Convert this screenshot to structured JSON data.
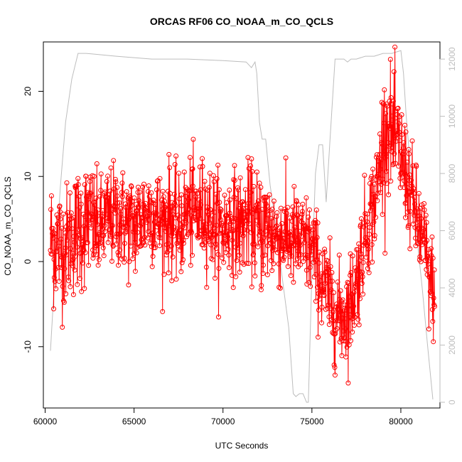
{
  "chart_data": {
    "type": "line",
    "title": "ORCAS RF06 CO_NOAA_m_CO_QCLS",
    "xlabel": "UTC Seconds",
    "ylabel": "CO_NOAA_m_CO_QCLS",
    "xlim": [
      59900,
      82200
    ],
    "ylim": [
      -17.2,
      25.8
    ],
    "y2lim": [
      -200,
      12600
    ],
    "xticks": [
      "60000",
      "65000",
      "70000",
      "75000",
      "80000"
    ],
    "yticks": [
      "-10",
      "0",
      "10",
      "20"
    ],
    "y2ticks": [
      "0",
      "2000",
      "4000",
      "6000",
      "8000",
      "10000",
      "12000"
    ],
    "colors": {
      "series": "#ff0000",
      "secondary": "#bdbdbd",
      "axis": "#000000"
    },
    "series": [
      {
        "name": "",
        "style": "line+open-circle",
        "color": "#ff0000",
        "profile": [
          [
            60300,
            2.5,
            3.8
          ],
          [
            60700,
            2.0,
            3.8
          ],
          [
            61000,
            1.5,
            3.5
          ],
          [
            61500,
            3.0,
            3.5
          ],
          [
            62000,
            4.0,
            3.8
          ],
          [
            62500,
            5.0,
            3.5
          ],
          [
            63000,
            3.5,
            3.0
          ],
          [
            63500,
            5.0,
            3.0
          ],
          [
            64000,
            5.5,
            3.0
          ],
          [
            64500,
            4.5,
            3.0
          ],
          [
            65000,
            4.0,
            3.2
          ],
          [
            65500,
            5.5,
            3.0
          ],
          [
            66000,
            6.0,
            3.0
          ],
          [
            66500,
            4.5,
            3.0
          ],
          [
            67000,
            5.5,
            3.2
          ],
          [
            67500,
            3.5,
            3.0
          ],
          [
            68000,
            6.0,
            3.0
          ],
          [
            68500,
            5.5,
            3.2
          ],
          [
            69000,
            6.0,
            3.0
          ],
          [
            69500,
            4.5,
            3.2
          ],
          [
            70000,
            3.5,
            3.0
          ],
          [
            70500,
            5.0,
            3.0
          ],
          [
            71000,
            4.0,
            3.0
          ],
          [
            71500,
            5.5,
            3.0
          ],
          [
            72000,
            3.5,
            3.5
          ],
          [
            72500,
            4.0,
            3.5
          ],
          [
            73000,
            3.0,
            3.0
          ],
          [
            73500,
            3.0,
            2.8
          ],
          [
            74000,
            2.5,
            3.0
          ],
          [
            74500,
            2.0,
            3.0
          ],
          [
            75000,
            1.5,
            3.0
          ],
          [
            75500,
            -2.0,
            3.0
          ],
          [
            76000,
            -4.5,
            3.0
          ],
          [
            76500,
            -6.5,
            3.0
          ],
          [
            77000,
            -6.0,
            3.0
          ],
          [
            77500,
            -2.5,
            3.0
          ],
          [
            77800,
            1.0,
            3.0
          ],
          [
            78000,
            3.5,
            3.0
          ],
          [
            78300,
            5.5,
            3.0
          ],
          [
            78600,
            7.5,
            3.0
          ],
          [
            79000,
            14.5,
            3.5
          ],
          [
            79300,
            16.0,
            3.5
          ],
          [
            79600,
            14.5,
            3.5
          ],
          [
            80000,
            12.5,
            3.5
          ],
          [
            80300,
            10.0,
            3.0
          ],
          [
            80600,
            7.5,
            3.0
          ],
          [
            81000,
            4.0,
            3.0
          ],
          [
            81300,
            2.0,
            3.0
          ],
          [
            81600,
            -2.0,
            3.0
          ],
          [
            81900,
            -3.5,
            3.0
          ]
        ]
      },
      {
        "name": "",
        "axis": "right",
        "style": "line",
        "color": "#bdbdbd",
        "x": [
          60300,
          60550,
          60850,
          61150,
          61500,
          61850,
          62300,
          64000,
          66000,
          68000,
          70000,
          71300,
          71600,
          71800,
          71900,
          72050,
          72200,
          72400,
          72650,
          72900,
          73300,
          73700,
          73950,
          74100,
          74300,
          74500,
          74700,
          74800,
          75000,
          75200,
          75400,
          75600,
          75800,
          76050,
          76300,
          76800,
          77000,
          77200,
          77500,
          78000,
          78500,
          79000,
          79500,
          80000,
          80150,
          80300,
          80500,
          80700,
          80950,
          81200,
          81500,
          81800
        ],
        "y": [
          1800,
          4500,
          7500,
          9800,
          11300,
          12200,
          12200,
          12100,
          12000,
          12000,
          11950,
          11900,
          11700,
          11900,
          11500,
          9800,
          9200,
          9200,
          7600,
          6500,
          4500,
          2600,
          300,
          200,
          300,
          300,
          0,
          0,
          4500,
          8000,
          9000,
          9000,
          7000,
          9500,
          12000,
          12000,
          11900,
          12000,
          12000,
          12100,
          12100,
          12200,
          12200,
          12300,
          11500,
          10000,
          8500,
          7000,
          5500,
          4000,
          2000,
          100
        ]
      }
    ]
  }
}
